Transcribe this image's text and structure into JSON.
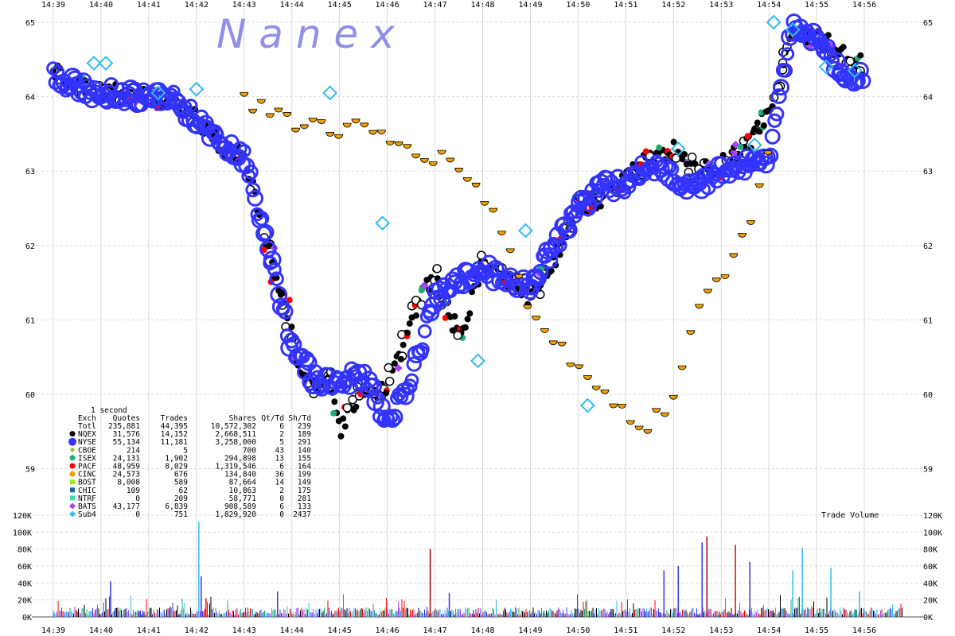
{
  "watermark": "N a n e x",
  "chart_data": [
    {
      "type": "scatter",
      "title": "",
      "xlabel": "",
      "ylabel": "",
      "x_ticks": [
        "14:39",
        "14:40",
        "14:41",
        "14:42",
        "14:43",
        "14:44",
        "14:45",
        "14:46",
        "14:47",
        "14:48",
        "14:49",
        "14:50",
        "14:51",
        "14:52",
        "14:53",
        "14:54",
        "14:55",
        "14:56"
      ],
      "y_ticks": [
        65,
        64,
        63,
        62,
        61,
        60,
        59
      ],
      "ylim": [
        58.4,
        65.2
      ],
      "xlim_minutes": [
        0,
        18
      ],
      "grid": true,
      "series": [
        {
          "name": "NQEX",
          "color": "#000000",
          "x": [
            0,
            0.5,
            1,
            1.5,
            2,
            2.5,
            3,
            3.5,
            4,
            4.5,
            5,
            5.2,
            5.5,
            5.8,
            6,
            6.5,
            7,
            7.5,
            7.8,
            8,
            8.3,
            8.6,
            9,
            9.5,
            10,
            10.5,
            11,
            11.5,
            12,
            12.5,
            13,
            13.5,
            14,
            14.5,
            15,
            15.5,
            16,
            16.5,
            17
          ],
          "y": [
            64.35,
            64.15,
            64.05,
            64.05,
            64.0,
            63.95,
            63.7,
            63.35,
            63.2,
            62.0,
            60.8,
            60.2,
            60.1,
            60.2,
            59.5,
            60.1,
            60.0,
            61.0,
            61.4,
            61.6,
            61.0,
            60.9,
            61.8,
            61.5,
            61.3,
            61.8,
            62.5,
            62.6,
            62.9,
            63.2,
            63.3,
            63.0,
            63.1,
            63.3,
            63.8,
            64.9,
            64.8,
            64.6,
            64.4
          ]
        },
        {
          "name": "NYSE",
          "color": "#3333ff",
          "x": [
            0,
            0.5,
            1,
            1.5,
            2,
            2.5,
            3,
            3.5,
            4,
            4.5,
            5,
            5.5,
            6,
            6.5,
            7,
            7.5,
            8,
            8.5,
            9,
            9.5,
            10,
            10.5,
            11,
            11.5,
            12,
            12.5,
            13,
            13.5,
            14,
            14.5,
            15,
            15.5,
            16,
            16.5,
            17
          ],
          "y": [
            64.3,
            64.12,
            64.05,
            64.02,
            64.0,
            63.98,
            63.7,
            63.4,
            63.2,
            62.0,
            60.6,
            60.2,
            60.2,
            60.25,
            59.6,
            60.2,
            61.3,
            61.5,
            61.7,
            61.5,
            61.5,
            62.0,
            62.5,
            62.8,
            62.8,
            63.1,
            62.9,
            62.8,
            63.0,
            63.1,
            63.2,
            64.95,
            64.8,
            64.3,
            64.3
          ]
        },
        {
          "name": "CINC",
          "color": "#f0a000",
          "x": [
            4,
            4.5,
            5,
            5.5,
            6,
            6.5,
            7,
            7.5,
            8,
            8.5,
            9,
            9.5,
            10,
            10.5,
            11,
            11.5,
            12,
            12.5,
            13,
            13.5,
            14,
            14.5,
            15
          ],
          "y": [
            63.95,
            63.85,
            63.7,
            63.65,
            63.55,
            63.6,
            63.4,
            63.35,
            63.2,
            63.1,
            62.7,
            62.1,
            61.1,
            60.8,
            60.3,
            60.2,
            59.7,
            59.6,
            60.0,
            61.3,
            61.5,
            62.2,
            63.2
          ]
        },
        {
          "name": "Sub4",
          "color": "#33bbee",
          "x": [
            0.85,
            1.1,
            2.2,
            3,
            5.8,
            6.9,
            8.9,
            9.9,
            11.2,
            13.1,
            14.7,
            15.1,
            15.5,
            16.2,
            16.8
          ],
          "y": [
            64.45,
            64.45,
            64.05,
            64.1,
            64.05,
            62.3,
            60.45,
            62.2,
            59.85,
            63.3,
            63.35,
            65.0,
            64.9,
            64.4,
            64.35
          ]
        }
      ],
      "legend": {
        "interval": "1 second",
        "headers": [
          "Exch",
          "Quotes",
          "Trades",
          "Shares",
          "Qt/Td",
          "Sh/Td"
        ],
        "rows": [
          {
            "exch": "Totl",
            "quotes": "235,881",
            "trades": "44,395",
            "shares": "10,572,302",
            "qt_td": "6",
            "sh_td": "239",
            "color": "#000000",
            "marker": "none"
          },
          {
            "exch": "NQEX",
            "quotes": "31,576",
            "trades": "14,152",
            "shares": "2,668,511",
            "qt_td": "2",
            "sh_td": "189",
            "color": "#000000",
            "marker": "circle"
          },
          {
            "exch": "NYSE",
            "quotes": "55,134",
            "trades": "11,181",
            "shares": "3,258,000",
            "qt_td": "5",
            "sh_td": "291",
            "color": "#3333ff",
            "marker": "circle-big"
          },
          {
            "exch": "CBOE",
            "quotes": "214",
            "trades": "5",
            "shares": "700",
            "qt_td": "43",
            "sh_td": "140",
            "color": "#88cc22",
            "marker": "circle-small"
          },
          {
            "exch": "ISEX",
            "quotes": "24,131",
            "trades": "1,902",
            "shares": "294,898",
            "qt_td": "13",
            "sh_td": "155",
            "color": "#22aa77",
            "marker": "circle"
          },
          {
            "exch": "PACF",
            "quotes": "48,959",
            "trades": "8,029",
            "shares": "1,319,546",
            "qt_td": "6",
            "sh_td": "164",
            "color": "#ff0000",
            "marker": "circle"
          },
          {
            "exch": "CINC",
            "quotes": "24,573",
            "trades": "676",
            "shares": "134,840",
            "qt_td": "36",
            "sh_td": "199",
            "color": "#f0a000",
            "marker": "circle"
          },
          {
            "exch": "BOST",
            "quotes": "8,008",
            "trades": "589",
            "shares": "87,664",
            "qt_td": "14",
            "sh_td": "149",
            "color": "#99ee22",
            "marker": "square"
          },
          {
            "exch": "CHIC",
            "quotes": "109",
            "trades": "62",
            "shares": "10,863",
            "qt_td": "2",
            "sh_td": "175",
            "color": "#2266aa",
            "marker": "square"
          },
          {
            "exch": "NTRF",
            "quotes": "0",
            "trades": "209",
            "shares": "58,771",
            "qt_td": "0",
            "sh_td": "281",
            "color": "#44ddaa",
            "marker": "square"
          },
          {
            "exch": "BATS",
            "quotes": "43,177",
            "trades": "6,839",
            "shares": "908,589",
            "qt_td": "6",
            "sh_td": "133",
            "color": "#aa44ee",
            "marker": "diamond"
          },
          {
            "exch": "Sub4",
            "quotes": "0",
            "trades": "751",
            "shares": "1,829,920",
            "qt_td": "0",
            "sh_td": "2437",
            "color": "#33bbee",
            "marker": "diamond"
          }
        ]
      }
    },
    {
      "type": "bar",
      "title": "Trade Volume",
      "y_ticks": [
        "120K",
        "100K",
        "80K",
        "60K",
        "40K",
        "20K",
        "0K"
      ],
      "ylim": [
        0,
        120000
      ],
      "grid": true,
      "spikes": [
        {
          "x": 1.2,
          "value": 42000,
          "color": "#3333ff"
        },
        {
          "x": 3.05,
          "value": 112000,
          "color": "#33bbee"
        },
        {
          "x": 3.1,
          "value": 48000,
          "color": "#3333ff"
        },
        {
          "x": 3.2,
          "value": 22000,
          "color": "#ff0000"
        },
        {
          "x": 4.7,
          "value": 30000,
          "color": "#3333ff"
        },
        {
          "x": 7.9,
          "value": 80000,
          "color": "#aa0000"
        },
        {
          "x": 8.3,
          "value": 28000,
          "color": "#3333ff"
        },
        {
          "x": 12.8,
          "value": 55000,
          "color": "#3333ff"
        },
        {
          "x": 13.1,
          "value": 60000,
          "color": "#3333ff"
        },
        {
          "x": 13.6,
          "value": 88000,
          "color": "#3333ff"
        },
        {
          "x": 13.7,
          "value": 95000,
          "color": "#aa0000"
        },
        {
          "x": 14.3,
          "value": 85000,
          "color": "#ff0000"
        },
        {
          "x": 14.6,
          "value": 65000,
          "color": "#3333ff"
        },
        {
          "x": 15.5,
          "value": 55000,
          "color": "#33bbee"
        },
        {
          "x": 15.7,
          "value": 82000,
          "color": "#33bbee"
        },
        {
          "x": 16.3,
          "value": 58000,
          "color": "#33bbee"
        },
        {
          "x": 16.9,
          "value": 30000,
          "color": "#33bbee"
        }
      ]
    }
  ]
}
